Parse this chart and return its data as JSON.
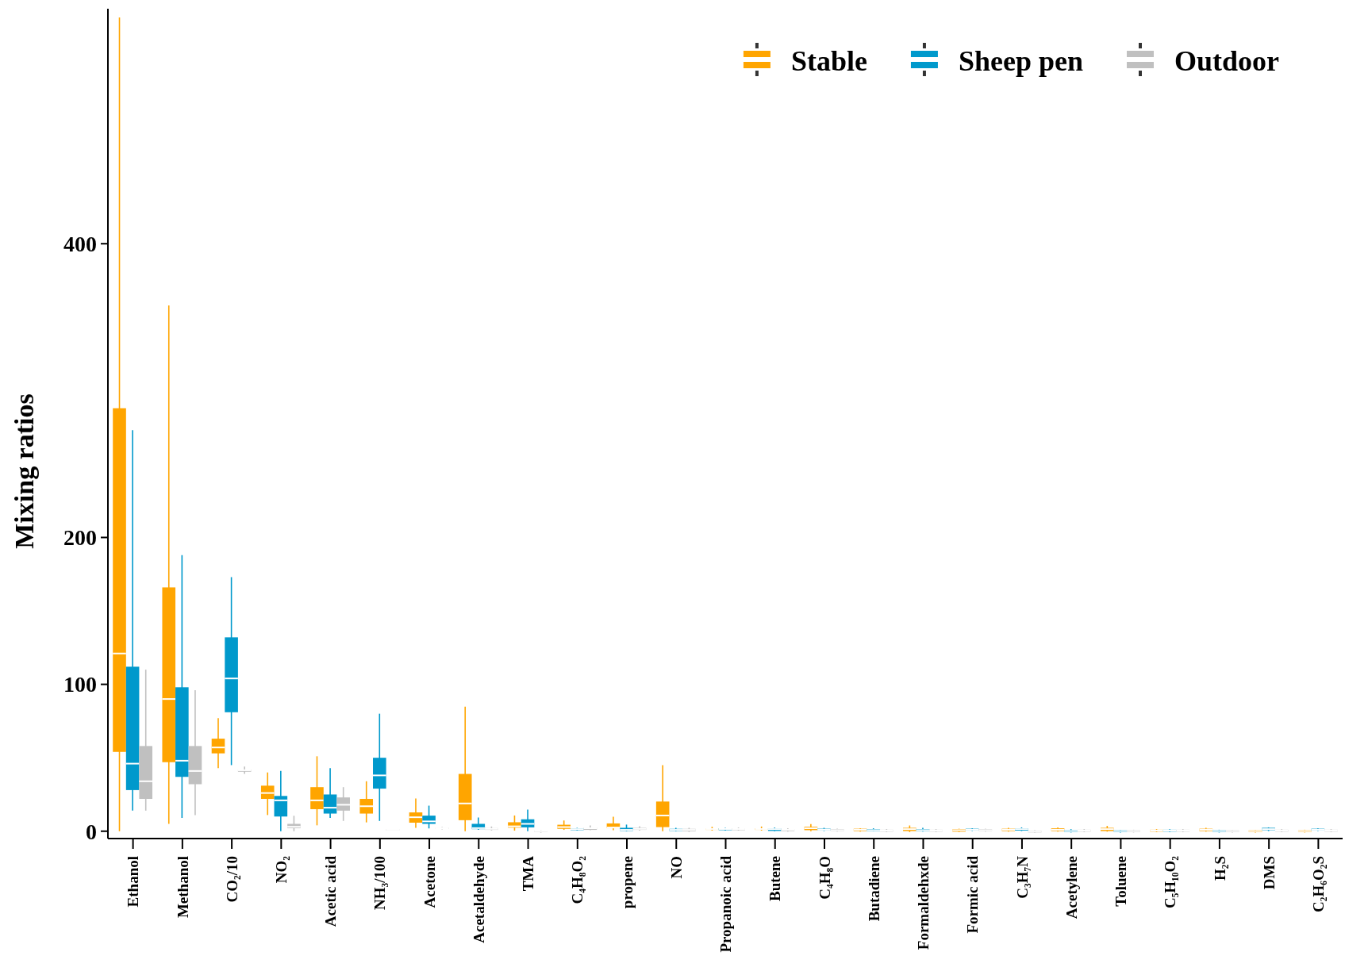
{
  "chart_data": {
    "type": "box",
    "ylabel": "Mixing ratios",
    "legend": "top right",
    "ylim": [
      -5,
      560
    ],
    "yticks": [
      0,
      100,
      200,
      400
    ],
    "categories": [
      "Ethanol",
      "Methanol",
      "CO₂/10",
      "NO₂",
      "Acetic acid",
      "NH₃/100",
      "Acetone",
      "Acetaldehyde",
      "TMA",
      "C₄H₈O₂",
      "propene",
      "NO",
      "Propanoic acid",
      "Butene",
      "C₄H₈O",
      "Butadiene",
      "Formaldehxde",
      "Formic acid",
      "C₃H₇N",
      "Acetylene",
      "Toluene",
      "C₅H₁₀O₂",
      "H₂S",
      "DMS",
      "C₂H₆O₂S"
    ],
    "series": [
      {
        "name": "Stable",
        "color": "#ffa500",
        "boxes": [
          {
            "low": 0,
            "q1": 54,
            "median": 121,
            "q3": 288,
            "high": 554
          },
          {
            "low": 5,
            "q1": 47,
            "median": 90,
            "q3": 166,
            "high": 358
          },
          {
            "low": 43,
            "q1": 53,
            "median": 57,
            "q3": 63,
            "high": 77
          },
          {
            "low": 11,
            "q1": 22,
            "median": 26,
            "q3": 31,
            "high": 40
          },
          {
            "low": 4,
            "q1": 15,
            "median": 21,
            "q3": 30,
            "high": 51
          },
          {
            "low": 6,
            "q1": 12,
            "median": 17,
            "q3": 22,
            "high": 34
          },
          {
            "low": 2.3,
            "q1": 5.8,
            "median": 9.5,
            "q3": 12.8,
            "high": 22.3
          },
          {
            "low": 0,
            "q1": 7.5,
            "median": 18.9,
            "q3": 39,
            "high": 84.8
          },
          {
            "low": 0.4,
            "q1": 2.4,
            "median": 3.3,
            "q3": 6.1,
            "high": 10.7
          },
          {
            "low": 0.9,
            "q1": 1.6,
            "median": 2.8,
            "q3": 4.4,
            "high": 7.3
          },
          {
            "low": 0.7,
            "q1": 2,
            "median": 2.5,
            "q3": 5.3,
            "high": 9.9
          },
          {
            "low": 0,
            "q1": 2.8,
            "median": 10.7,
            "q3": 20.2,
            "high": 45
          },
          {
            "low": 0.4,
            "q1": 0.9,
            "median": 1.5,
            "q3": 2,
            "high": 3
          },
          {
            "low": 0.4,
            "q1": 0.9,
            "median": 1.5,
            "q3": 2,
            "high": 3.2
          },
          {
            "low": 0,
            "q1": 0.7,
            "median": 2,
            "q3": 3,
            "high": 4.9
          },
          {
            "low": -0.3,
            "q1": 0.1,
            "median": 1,
            "q3": 1.7,
            "high": 2
          },
          {
            "low": -0.6,
            "q1": 0.1,
            "median": 1.4,
            "q3": 2.3,
            "high": 3.9
          },
          {
            "low": -0.6,
            "q1": -0.3,
            "median": 0.7,
            "q3": 1.4,
            "high": 1.7
          },
          {
            "low": -0.3,
            "q1": 0.1,
            "median": 1,
            "q3": 1.7,
            "high": 2.3
          },
          {
            "low": -0.3,
            "q1": 0.1,
            "median": 1,
            "q3": 2,
            "high": 2.6
          },
          {
            "low": -0.3,
            "q1": 0.1,
            "median": 1.4,
            "q3": 2.3,
            "high": 3.6
          },
          {
            "low": -0.6,
            "q1": -0.3,
            "median": 0.4,
            "q3": 1,
            "high": 1.4
          },
          {
            "low": -0.3,
            "q1": 0.1,
            "median": 1,
            "q3": 1.7,
            "high": 2.3
          },
          {
            "low": -0.9,
            "q1": -0.6,
            "median": 0.1,
            "q3": 0.7,
            "high": 1
          },
          {
            "low": -0.9,
            "q1": -0.6,
            "median": 0.1,
            "q3": 0.7,
            "high": 1
          }
        ]
      },
      {
        "name": "Sheep pen",
        "color": "#0099cc",
        "boxes": [
          {
            "low": 14,
            "q1": 28,
            "median": 46,
            "q3": 112,
            "high": 273
          },
          {
            "low": 9,
            "q1": 37,
            "median": 48,
            "q3": 98,
            "high": 188
          },
          {
            "low": 45,
            "q1": 81,
            "median": 104,
            "q3": 132,
            "high": 173
          },
          {
            "low": 0,
            "q1": 10,
            "median": 21,
            "q3": 24,
            "high": 41
          },
          {
            "low": 9,
            "q1": 12,
            "median": 16,
            "q3": 25,
            "high": 43
          },
          {
            "low": 7,
            "q1": 29,
            "median": 38,
            "q3": 50,
            "high": 80
          },
          {
            "low": 1.9,
            "q1": 5,
            "median": 6.7,
            "q3": 10.6,
            "high": 17.4
          },
          {
            "low": 1,
            "q1": 1.4,
            "median": 2.1,
            "q3": 5,
            "high": 9.3
          },
          {
            "low": 0,
            "q1": 2.6,
            "median": 5,
            "q3": 8.1,
            "high": 14.7
          },
          {
            "low": 0.4,
            "q1": 0.7,
            "median": 1.4,
            "q3": 2,
            "high": 2.3
          },
          {
            "low": 0,
            "q1": 0.2,
            "median": 0.9,
            "q3": 2.3,
            "high": 4.5
          },
          {
            "low": 0,
            "q1": 0.2,
            "median": 0.9,
            "q3": 1.6,
            "high": 2.3
          },
          {
            "low": 0.4,
            "q1": 0.7,
            "median": 1.5,
            "q3": 2,
            "high": 2.3
          },
          {
            "low": 0,
            "q1": 0.2,
            "median": 1.4,
            "q3": 1.8,
            "high": 2.5
          },
          {
            "low": 0.1,
            "q1": 0.4,
            "median": 1,
            "q3": 1.7,
            "high": 2.3
          },
          {
            "low": 0.1,
            "q1": 0.1,
            "median": 0.7,
            "q3": 1.4,
            "high": 2
          },
          {
            "low": -0.3,
            "q1": 0.1,
            "median": 0.7,
            "q3": 1.4,
            "high": 2.3
          },
          {
            "low": 0.1,
            "q1": 0.4,
            "median": 1,
            "q3": 1.7,
            "high": 2
          },
          {
            "low": 0.1,
            "q1": 0.4,
            "median": 1.4,
            "q3": 2,
            "high": 2.6
          },
          {
            "low": -0.9,
            "q1": -0.6,
            "median": 0.1,
            "q3": 0.7,
            "high": 1.4
          },
          {
            "low": -0.9,
            "q1": -0.6,
            "median": 0.1,
            "q3": 0.7,
            "high": 1
          },
          {
            "low": -0.6,
            "q1": -0.3,
            "median": 0.4,
            "q3": 1,
            "high": 1.4
          },
          {
            "low": -0.9,
            "q1": -0.6,
            "median": 0.1,
            "q3": 0.7,
            "high": 1
          },
          {
            "low": 0.1,
            "q1": 0.7,
            "median": 1.4,
            "q3": 2.3,
            "high": 2.6
          },
          {
            "low": 0.1,
            "q1": 0.4,
            "median": 1,
            "q3": 1.7,
            "high": 2
          }
        ]
      },
      {
        "name": "Outdoor",
        "color": "#c0c0c0",
        "boxes": [
          {
            "low": 14,
            "q1": 22,
            "median": 34,
            "q3": 58,
            "high": 110
          },
          {
            "low": 11,
            "q1": 32,
            "median": 41,
            "q3": 58,
            "high": 96
          },
          {
            "low": 39,
            "q1": 40.5,
            "median": 41.5,
            "q3": 42,
            "high": 44
          },
          {
            "low": 0,
            "q1": 2,
            "median": 3,
            "q3": 5,
            "high": 10.5
          },
          {
            "low": 7,
            "q1": 14,
            "median": 18,
            "q3": 23,
            "high": 30
          },
          {
            "low": 0.5,
            "q1": 0.8,
            "median": 1,
            "q3": 1.3,
            "high": 1.5
          },
          {
            "low": 1.2,
            "q1": 1.6,
            "median": 2,
            "q3": 2.4,
            "high": 2.8
          },
          {
            "low": 0.5,
            "q1": 0.9,
            "median": 1.6,
            "q3": 2.1,
            "high": 3.2
          },
          {
            "low": -1,
            "q1": -0.6,
            "median": 0,
            "q3": 0.4,
            "high": 0.6
          },
          {
            "low": 0.7,
            "q1": 0.9,
            "median": 2,
            "q3": 2.5,
            "high": 3.9
          },
          {
            "low": 0.4,
            "q1": 0.9,
            "median": 1.6,
            "q3": 2.3,
            "high": 3.4
          },
          {
            "low": -0.5,
            "q1": 0,
            "median": 0.9,
            "q3": 1.6,
            "high": 2.3
          },
          {
            "low": 0.4,
            "q1": 0.7,
            "median": 1.5,
            "q3": 2,
            "high": 2.5
          },
          {
            "low": -0.3,
            "q1": 0.1,
            "median": 1,
            "q3": 1.4,
            "high": 2
          },
          {
            "low": -0.3,
            "q1": 0.1,
            "median": 0.7,
            "q3": 1.4,
            "high": 1.7
          },
          {
            "low": -0.6,
            "q1": -0.3,
            "median": 0.4,
            "q3": 1,
            "high": 1.4
          },
          {
            "low": -0.6,
            "q1": -0.3,
            "median": 0.4,
            "q3": 1,
            "high": 1.4
          },
          {
            "low": -0.3,
            "q1": 0.1,
            "median": 0.7,
            "q3": 1.4,
            "high": 1.7
          },
          {
            "low": -1.2,
            "q1": -0.9,
            "median": -0.3,
            "q3": 0.4,
            "high": 0.7
          },
          {
            "low": -0.6,
            "q1": -0.3,
            "median": 0.4,
            "q3": 1,
            "high": 1.4
          },
          {
            "low": -0.9,
            "q1": -0.6,
            "median": 0.1,
            "q3": 0.7,
            "high": 1
          },
          {
            "low": -0.6,
            "q1": -0.3,
            "median": 0.4,
            "q3": 1,
            "high": 1.4
          },
          {
            "low": -0.9,
            "q1": -0.6,
            "median": 0.1,
            "q3": 0.7,
            "high": 1
          },
          {
            "low": -0.6,
            "q1": -0.3,
            "median": 0.4,
            "q3": 1,
            "high": 1.4
          },
          {
            "low": -0.6,
            "q1": -0.3,
            "median": 0.4,
            "q3": 1,
            "high": 1.4
          }
        ]
      }
    ]
  }
}
